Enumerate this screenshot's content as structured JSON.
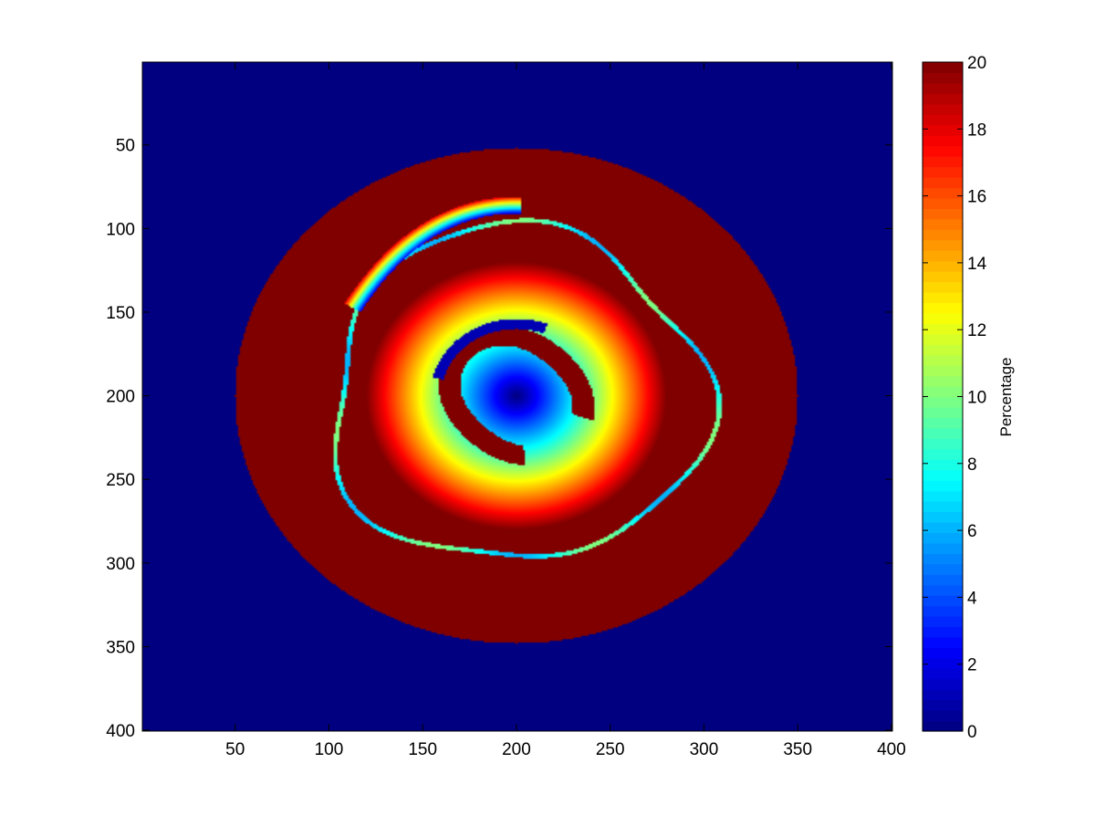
{
  "chart_data": {
    "type": "heatmap",
    "title": "",
    "xlabel": "",
    "ylabel": "",
    "xlim": [
      0.5,
      400.5
    ],
    "ylim": [
      0.5,
      400.5
    ],
    "y_direction": "reversed",
    "x_ticks": [
      50,
      100,
      150,
      200,
      250,
      300,
      350,
      400
    ],
    "y_ticks": [
      50,
      100,
      150,
      200,
      250,
      300,
      350,
      400
    ],
    "colormap": "jet",
    "colorbar": {
      "label": "Percentage",
      "range": [
        0,
        20
      ],
      "ticks": [
        0,
        2,
        4,
        6,
        8,
        10,
        12,
        14,
        16,
        18,
        20
      ],
      "levels": 64
    },
    "regions": {
      "outer_ellipse": {
        "center": [
          200,
          200
        ],
        "semi_axis_x": 150,
        "semi_axis_y": 148,
        "value": 20
      },
      "background": {
        "value": 0
      },
      "radial_gradient": {
        "center": [
          200,
          200
        ],
        "value_at_center": 0,
        "value_at_radius_70": 20,
        "radius_full_value": 80
      },
      "inner_crescent": {
        "value": 20
      }
    },
    "colors": {
      "axes_frame": "#000000",
      "background": "#ffffff"
    }
  }
}
